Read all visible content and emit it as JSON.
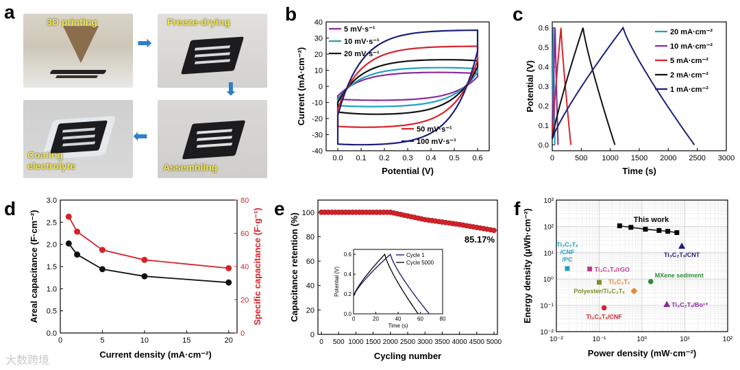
{
  "panel_labels": [
    "a",
    "b",
    "c",
    "d",
    "e",
    "f"
  ],
  "panel_a": {
    "steps": [
      "3D printing",
      "Freeze-drying",
      "Assembling",
      "Coating electrolyte"
    ],
    "step4_lines": [
      "Coating",
      "electrolyte"
    ]
  },
  "watermark": "大数跨境",
  "colors": {
    "black": "#111111",
    "navy": "#1b1f78",
    "red": "#d6222a",
    "teal": "#1fa0c0",
    "purple": "#8a2a9a",
    "green": "#2e8b3a",
    "orange": "#e58a33",
    "magenta": "#c23a8a"
  },
  "chart_data": [
    {
      "panel": "b",
      "type": "line",
      "title": "",
      "xlabel": "Potential (V)",
      "ylabel": "Current (mA·cm⁻²)",
      "xlim": [
        -0.05,
        0.65
      ],
      "ylim": [
        -40,
        40
      ],
      "xticks": [
        "0.0",
        "0.1",
        "0.2",
        "0.3",
        "0.4",
        "0.5",
        "0.6"
      ],
      "yticks": [
        "-40",
        "-30",
        "-20",
        "-10",
        "0",
        "10",
        "20",
        "30",
        "40"
      ],
      "legend_top": [
        "5 mV·s⁻¹",
        "10 mV·s⁻¹",
        "20 mV·s⁻¹"
      ],
      "legend_bottom": [
        "50 mV·s⁻¹",
        "100 mV·s⁻¹"
      ],
      "series": [
        {
          "name": "5 mV·s⁻¹",
          "color": "#8a2a9a",
          "upper_start": -6,
          "upper_end": 8,
          "upper_peak": 9,
          "lower_start": -8,
          "lower_end": 6,
          "lower_min": -9
        },
        {
          "name": "10 mV·s⁻¹",
          "color": "#1fa0c0",
          "upper_start": -8,
          "upper_end": 11,
          "upper_peak": 12,
          "lower_start": -12,
          "lower_end": 9,
          "lower_min": -13
        },
        {
          "name": "20 mV·s⁻¹",
          "color": "#111111",
          "upper_start": -10,
          "upper_end": 16,
          "upper_peak": 17,
          "lower_start": -16,
          "lower_end": 12,
          "lower_min": -18
        },
        {
          "name": "50 mV·s⁻¹",
          "color": "#d6222a",
          "upper_start": -14,
          "upper_end": 25,
          "upper_peak": 25,
          "lower_start": -25,
          "lower_end": 16,
          "lower_min": -26
        },
        {
          "name": "100 mV·s⁻¹",
          "color": "#1b1f78",
          "upper_start": -18,
          "upper_end": 35,
          "upper_peak": 35,
          "lower_start": -36,
          "lower_end": 22,
          "lower_min": -37
        }
      ]
    },
    {
      "panel": "c",
      "type": "line",
      "xlabel": "Time (s)",
      "ylabel": "Potential (V)",
      "xlim": [
        0,
        3000
      ],
      "ylim": [
        -0.03,
        0.63
      ],
      "xticks": [
        "0",
        "500",
        "1000",
        "1500",
        "2000",
        "2500",
        "3000"
      ],
      "yticks": [
        "0.0",
        "0.1",
        "0.2",
        "0.3",
        "0.4",
        "0.5",
        "0.6"
      ],
      "legend": [
        "20 mA·cm⁻²",
        "10 mA·cm⁻²",
        "5 mA·cm⁻²",
        "2 mA·cm⁻²",
        "1 mA·cm⁻²"
      ],
      "series": [
        {
          "name": "20 mA·cm⁻²",
          "color": "#1fa0c0",
          "charge_end": 20,
          "discharge_end": 45
        },
        {
          "name": "10 mA·cm⁻²",
          "color": "#8a2a9a",
          "charge_end": 50,
          "discharge_end": 100
        },
        {
          "name": "5 mA·cm⁻²",
          "color": "#d6222a",
          "charge_end": 150,
          "discharge_end": 320
        },
        {
          "name": "2 mA·cm⁻²",
          "color": "#111111",
          "charge_end": 530,
          "discharge_end": 1080
        },
        {
          "name": "1 mA·cm⁻²",
          "color": "#1b1f78",
          "charge_end": 1220,
          "discharge_end": 2450
        }
      ]
    },
    {
      "panel": "d",
      "type": "line",
      "xlabel": "Current density (mA·cm⁻²)",
      "ylabel": "Areal capacitance (F·cm⁻²)",
      "ylabel_right": "Specific capacitance (F·g⁻¹)",
      "xlim": [
        0,
        21
      ],
      "ylim": [
        0,
        3.0
      ],
      "ylim_right": [
        0,
        80
      ],
      "xticks": [
        "0",
        "5",
        "10",
        "15",
        "20"
      ],
      "yticks": [
        "0.0",
        "0.5",
        "1.0",
        "1.5",
        "2.0",
        "2.5",
        "3.0"
      ],
      "yticks_right": [
        "0",
        "20",
        "40",
        "60",
        "80"
      ],
      "x": [
        1,
        2,
        5,
        10,
        20
      ],
      "series": [
        {
          "name": "Areal capacitance",
          "color": "#111111",
          "values": [
            2.02,
            1.77,
            1.44,
            1.28,
            1.14
          ],
          "axis": "left"
        },
        {
          "name": "Specific capacitance",
          "color": "#d6222a",
          "values": [
            70,
            61,
            50,
            44,
            39
          ],
          "axis": "right"
        }
      ]
    },
    {
      "panel": "e",
      "type": "scatter",
      "xlabel": "Cycling number",
      "ylabel": "Capacitance retention (%)",
      "xlim": [
        -100,
        5100
      ],
      "ylim": [
        0,
        110
      ],
      "xticks": [
        "0",
        "500",
        "1000",
        "1500",
        "2000",
        "2500",
        "3000",
        "3500",
        "4000",
        "4500",
        "5000"
      ],
      "yticks": [
        "0",
        "20",
        "40",
        "60",
        "80",
        "100"
      ],
      "annotation": "85.17%",
      "trend": [
        [
          0,
          100
        ],
        [
          2000,
          100
        ],
        [
          2500,
          97
        ],
        [
          3000,
          94
        ],
        [
          4000,
          90
        ],
        [
          5000,
          85.17
        ]
      ],
      "color": "#d6222a",
      "inset": {
        "xlabel": "Time (s)",
        "ylabel": "Potential (V)",
        "xlim": [
          0,
          80
        ],
        "ylim": [
          0,
          0.65
        ],
        "xticks": [
          "0",
          "20",
          "40",
          "60",
          "80"
        ],
        "yticks": [
          "0.0",
          "0.2",
          "0.4",
          "0.6"
        ],
        "legend": [
          "Cycle 1",
          "Cycle 5000"
        ],
        "series": [
          {
            "name": "Cycle 1",
            "color": "#1b1f78",
            "charge_end": 33,
            "discharge_end": 68
          },
          {
            "name": "Cycle 5000",
            "color": "#111111",
            "charge_end": 28,
            "discharge_end": 58
          }
        ]
      }
    },
    {
      "panel": "f",
      "type": "scatter",
      "xlabel": "Power density (mW·cm⁻²)",
      "ylabel": "Energy density (μWh·cm⁻²)",
      "xscale": "log",
      "yscale": "log",
      "xlim": [
        0.01,
        100
      ],
      "ylim": [
        0.01,
        1000
      ],
      "xticks": [
        "10⁻²",
        "10⁻¹",
        "10⁰",
        "10¹",
        "10²"
      ],
      "yticks": [
        "10⁻²",
        "10⁻¹",
        "10⁰",
        "10¹",
        "10²",
        "10³"
      ],
      "this_work": {
        "label": "This work",
        "power": [
          0.3,
          0.55,
          1.2,
          2.5,
          4.0,
          6.5
        ],
        "energy": [
          105,
          92,
          78,
          70,
          65,
          58
        ]
      },
      "references": [
        {
          "label_lines": [
            "Ti₃C₂Tₓ",
            "/CNF",
            "/PC"
          ],
          "power": 0.018,
          "energy": 2.5,
          "color": "#1fa0c0",
          "marker": "square",
          "label_anchor": "above"
        },
        {
          "label_lines": [
            "Ti₃C₂Tₓ/rGO"
          ],
          "power": 0.06,
          "energy": 2.4,
          "color": "#c23a8a",
          "marker": "square",
          "label_anchor": "right"
        },
        {
          "label_lines": [
            "Ti₃C₂Tₓ"
          ],
          "power": 0.65,
          "energy": 0.35,
          "color": "#e58a33",
          "marker": "diamond",
          "label_anchor": "above-left"
        },
        {
          "label_lines": [
            "Polyester/Ti₃C₂Tₓ"
          ],
          "power": 0.1,
          "energy": 0.75,
          "color": "#7a8f2a",
          "marker": "square",
          "label_anchor": "below"
        },
        {
          "label_lines": [
            "MXene sediment"
          ],
          "power": 1.6,
          "energy": 0.8,
          "color": "#2e8b3a",
          "marker": "circle",
          "label_anchor": "above-right"
        },
        {
          "label_lines": [
            "Ti₃C₂Tₓ/CNT"
          ],
          "power": 8.5,
          "energy": 18,
          "color": "#1b1f78",
          "marker": "triangle",
          "label_anchor": "below"
        },
        {
          "label_lines": [
            "Ti₃C₂Tₓ/Bo¹⁺"
          ],
          "power": 3.8,
          "energy": 0.11,
          "color": "#8a2a9a",
          "marker": "triangle",
          "label_anchor": "right"
        },
        {
          "label_lines": [
            "Ti₃C₂Tₓ/CNF"
          ],
          "power": 0.13,
          "energy": 0.08,
          "color": "#d6222a",
          "marker": "circle",
          "label_anchor": "below"
        }
      ]
    }
  ]
}
